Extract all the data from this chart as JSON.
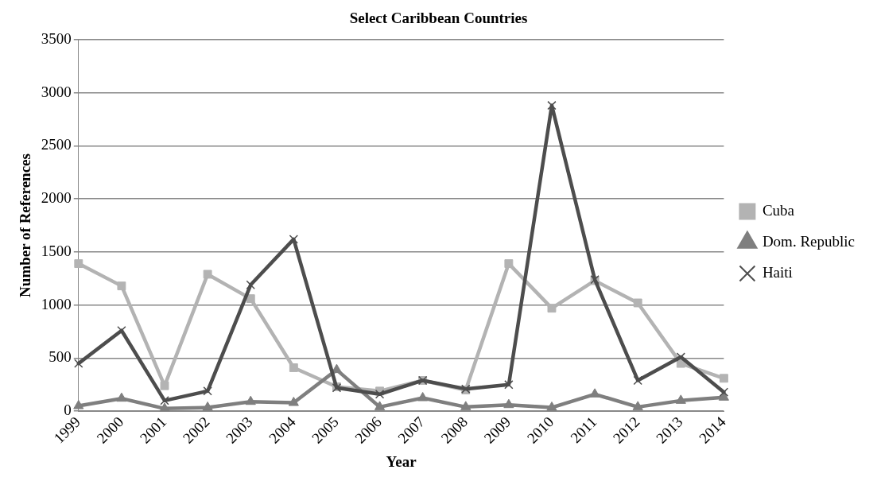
{
  "chart_data": {
    "type": "line",
    "title": "Select Caribbean Countries",
    "xlabel": "Year",
    "ylabel": "Number of References",
    "categories": [
      "1999",
      "2000",
      "2001",
      "2002",
      "2003",
      "2004",
      "2005",
      "2006",
      "2007",
      "2008",
      "2009",
      "2010",
      "2011",
      "2012",
      "2013",
      "2014"
    ],
    "series": [
      {
        "name": "Cuba",
        "color": "#b3b3b3",
        "marker": "square",
        "values": [
          1390,
          1180,
          240,
          1290,
          1060,
          410,
          230,
          190,
          290,
          200,
          1390,
          970,
          1230,
          1020,
          450,
          310
        ]
      },
      {
        "name": "Dom. Republic",
        "color": "#7f7f7f",
        "marker": "triangle",
        "values": [
          50,
          120,
          25,
          35,
          90,
          80,
          390,
          40,
          125,
          40,
          60,
          35,
          160,
          40,
          100,
          130
        ]
      },
      {
        "name": "Haiti",
        "color": "#4d4d4d",
        "marker": "cross",
        "values": [
          450,
          760,
          100,
          190,
          1190,
          1620,
          220,
          160,
          290,
          210,
          250,
          2880,
          1240,
          290,
          510,
          180
        ]
      }
    ],
    "ylim": [
      0,
      3500
    ],
    "yticks": [
      0,
      500,
      1000,
      1500,
      2000,
      2500,
      3000,
      3500
    ],
    "grid": "y",
    "legend": "right"
  }
}
